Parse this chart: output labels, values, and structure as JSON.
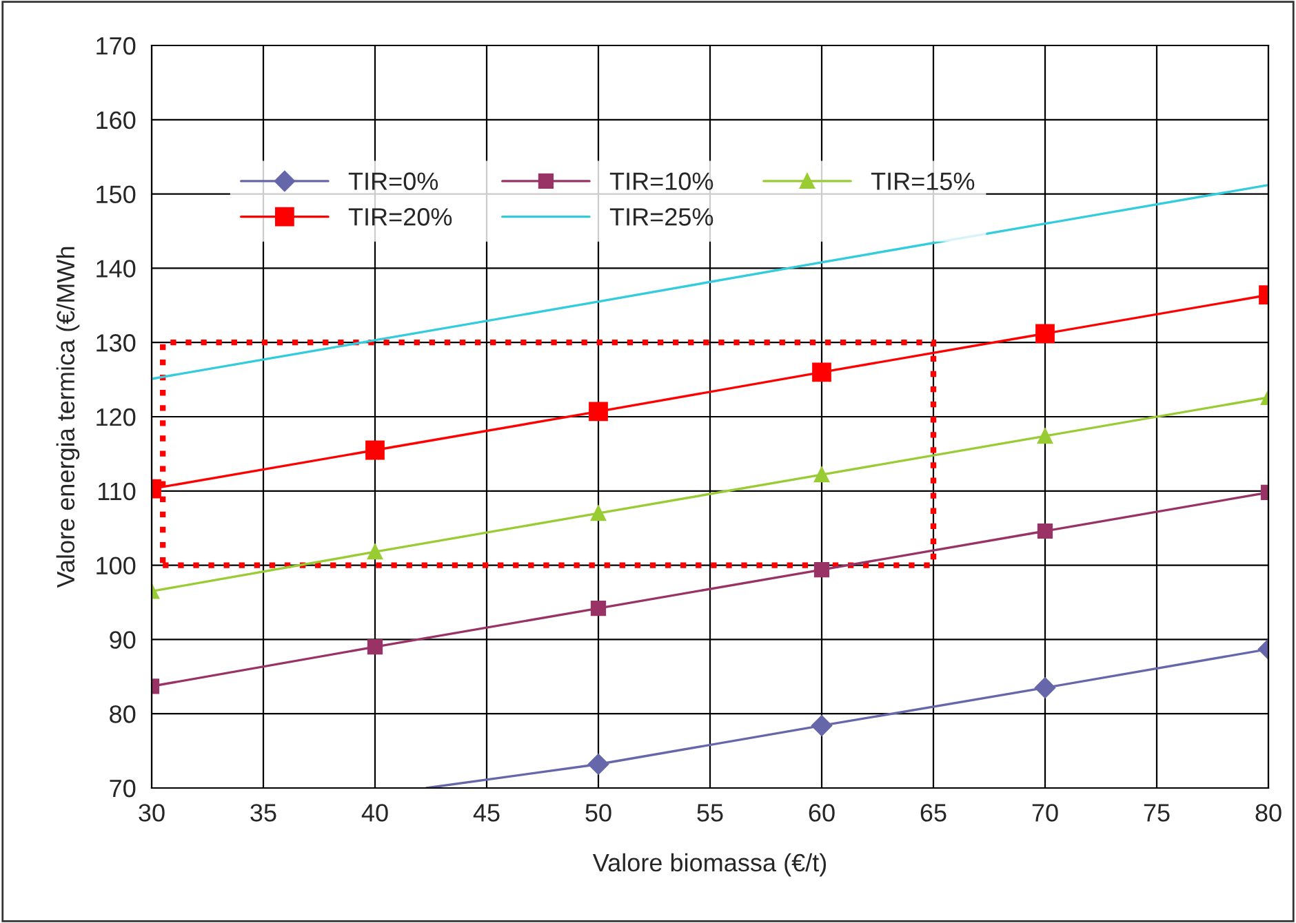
{
  "chart_data": {
    "type": "line",
    "xlabel": "Valore biomassa (€/t)",
    "ylabel": "Valore energia termica (€/MWh",
    "x": [
      30,
      40,
      50,
      60,
      70,
      80
    ],
    "series": [
      {
        "name": "TIR=0%",
        "color": "#6666aa",
        "marker": "diamond",
        "x": [
          42.3,
          50,
          60,
          70,
          80
        ],
        "values": [
          70,
          73.2,
          78.4,
          83.5,
          88.7
        ]
      },
      {
        "name": "TIR=10%",
        "color": "#993366",
        "marker": "square",
        "values": [
          83.7,
          89.0,
          94.2,
          99.4,
          104.6,
          109.8
        ]
      },
      {
        "name": "TIR=15%",
        "color": "#99cc33",
        "marker": "triangle",
        "values": [
          96.5,
          101.8,
          107.0,
          112.2,
          117.4,
          122.6
        ]
      },
      {
        "name": "TIR=20%",
        "color": "#ff0000",
        "marker": "square",
        "values": [
          110.3,
          115.5,
          120.7,
          126.0,
          131.2,
          136.4
        ]
      },
      {
        "name": "TIR=25%",
        "color": "#33ccdd",
        "marker": "none",
        "values": [
          125.1,
          130.3,
          135.5,
          140.8,
          146.0,
          151.2
        ]
      }
    ],
    "xlim": [
      30,
      80
    ],
    "xticks": [
      30,
      35,
      40,
      45,
      50,
      55,
      60,
      65,
      70,
      75,
      80
    ],
    "ylim": [
      70,
      170
    ],
    "yticks": [
      70,
      80,
      90,
      100,
      110,
      120,
      130,
      140,
      150,
      160,
      170
    ],
    "grid": true,
    "legend": "top left"
  }
}
